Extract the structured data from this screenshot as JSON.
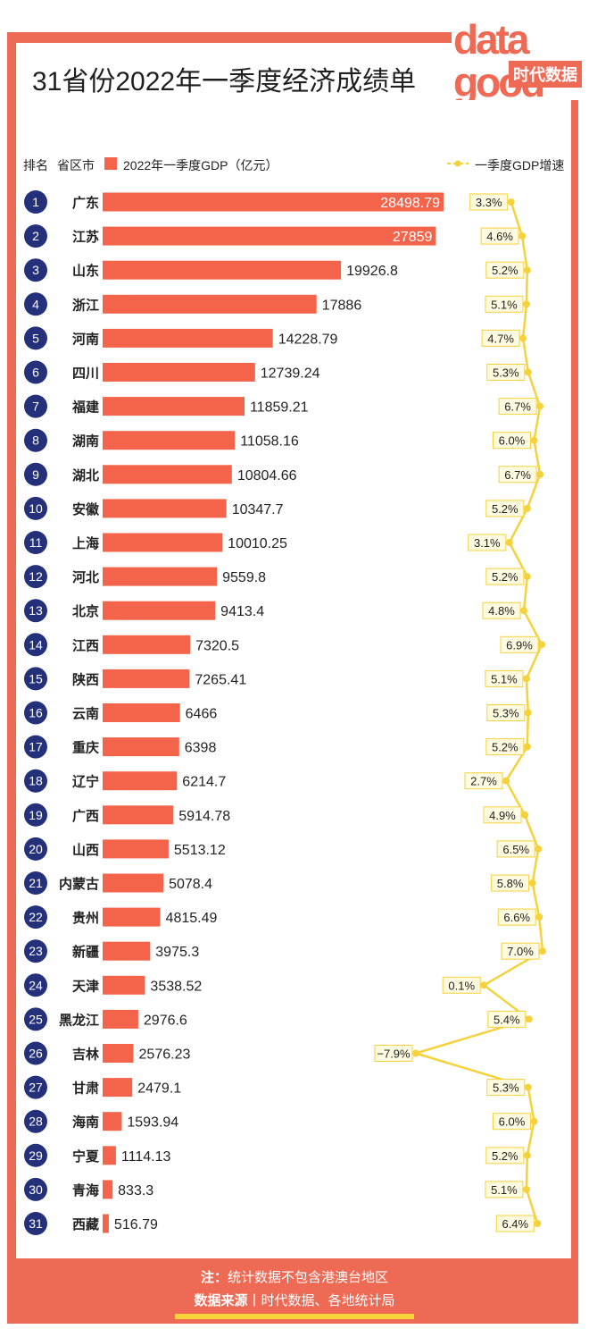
{
  "title": "31省份2022年一季度经济成绩单",
  "logo": {
    "text": "data good",
    "subtext": "时代数据"
  },
  "header": {
    "rank_label": "排名",
    "region_label": "省区市",
    "gdp_label": "2022年一季度GDP（亿元）",
    "growth_label": "一季度GDP增速"
  },
  "footer": {
    "note_label": "注：",
    "note_text": "统计数据不包含港澳台地区",
    "source_label": "数据来源",
    "separator": "丨",
    "source_text": "时代数据、各地统计局"
  },
  "colors": {
    "bar": "#f4644a",
    "frame": "#ee6a55",
    "rank_badge": "#24307a",
    "growth_line": "#f5d23d",
    "label_bg": "#fffbe0"
  },
  "chart_data": {
    "type": "bar",
    "title": "31省份2022年一季度经济成绩单",
    "orientation": "horizontal",
    "xlabel": "2022年一季度GDP（亿元）",
    "ranks": [
      "1",
      "2",
      "3",
      "4",
      "5",
      "6",
      "7",
      "8",
      "9",
      "10",
      "11",
      "12",
      "13",
      "14",
      "15",
      "16",
      "17",
      "18",
      "19",
      "20",
      "21",
      "22",
      "23",
      "24",
      "25",
      "26",
      "27",
      "28",
      "29",
      "30",
      "31"
    ],
    "categories": [
      "广东",
      "江苏",
      "山东",
      "浙江",
      "河南",
      "四川",
      "福建",
      "湖南",
      "湖北",
      "安徽",
      "上海",
      "河北",
      "北京",
      "江西",
      "陕西",
      "云南",
      "重庆",
      "辽宁",
      "广西",
      "山西",
      "内蒙古",
      "贵州",
      "新疆",
      "天津",
      "黑龙江",
      "吉林",
      "甘肃",
      "海南",
      "宁夏",
      "青海",
      "西藏"
    ],
    "gdp": [
      28498.79,
      27859,
      19926.8,
      17886,
      14228.79,
      12739.24,
      11859.21,
      11058.16,
      10804.66,
      10347.7,
      10010.25,
      9559.8,
      9413.4,
      7320.5,
      7265.41,
      6466,
      6398,
      6214.7,
      5914.78,
      5513.12,
      5078.4,
      4815.49,
      3975.3,
      3538.52,
      2976.6,
      2576.23,
      2479.1,
      1593.94,
      1114.13,
      833.3,
      516.79
    ],
    "gdp_labels": [
      "28498.79",
      "27859",
      "19926.8",
      "17886",
      "14228.79",
      "12739.24",
      "11859.21",
      "11058.16",
      "10804.66",
      "10347.7",
      "10010.25",
      "9559.8",
      "9413.4",
      "7320.5",
      "7265.41",
      "6466",
      "6398",
      "6214.7",
      "5914.78",
      "5513.12",
      "5078.4",
      "4815.49",
      "3975.3",
      "3538.52",
      "2976.6",
      "2576.23",
      "2479.1",
      "1593.94",
      "1114.13",
      "833.3",
      "516.79"
    ],
    "growth": [
      3.3,
      4.6,
      5.2,
      5.1,
      4.7,
      5.3,
      6.7,
      6.0,
      6.7,
      5.2,
      3.1,
      5.2,
      4.8,
      6.9,
      5.1,
      5.3,
      5.2,
      2.7,
      4.9,
      6.5,
      5.8,
      6.6,
      7.0,
      0.1,
      5.4,
      -7.9,
      5.3,
      6.0,
      5.2,
      5.1,
      6.4
    ],
    "growth_labels": [
      "3.3%",
      "4.6%",
      "5.2%",
      "5.1%",
      "4.7%",
      "5.3%",
      "6.7%",
      "6.0%",
      "6.7%",
      "5.2%",
      "3.1%",
      "5.2%",
      "4.8%",
      "6.9%",
      "5.1%",
      "5.3%",
      "5.2%",
      "2.7%",
      "4.9%",
      "6.5%",
      "5.8%",
      "6.6%",
      "7.0%",
      "0.1%",
      "5.4%",
      "−7.9%",
      "5.3%",
      "6.0%",
      "5.2%",
      "5.1%",
      "6.4%"
    ],
    "growth_range": [
      -7.9,
      7.0
    ],
    "legend": [
      "2022年一季度GDP（亿元）",
      "一季度GDP增速"
    ]
  }
}
